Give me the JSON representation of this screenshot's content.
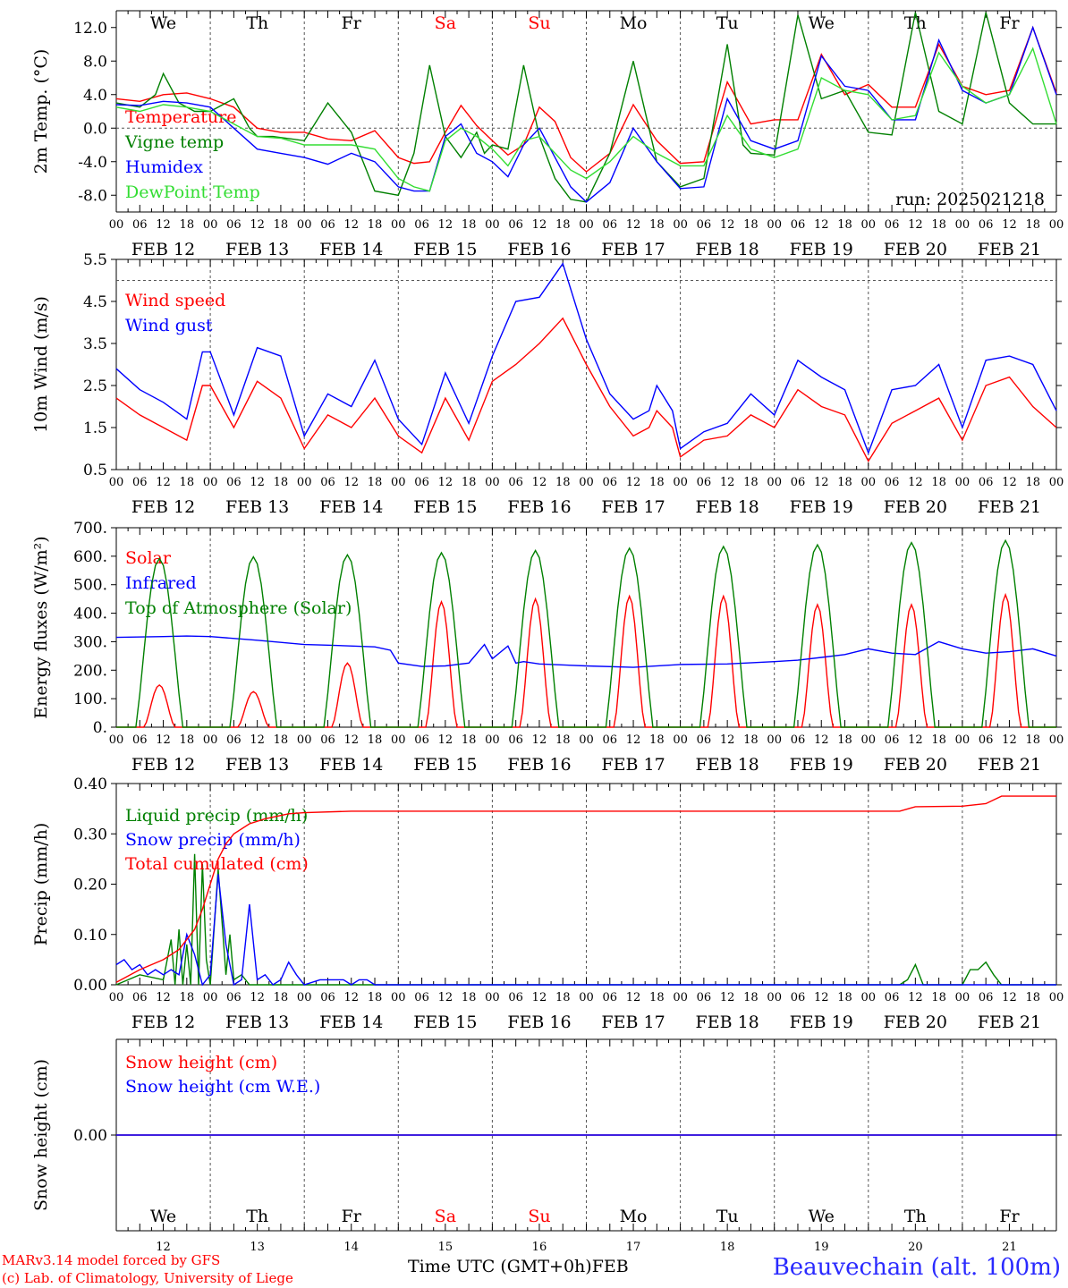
{
  "run_label": "run: 2025021218",
  "footer": {
    "model": "MARv3.14 model forced by GFS",
    "credit": "(c) Lab. of Climatology, University of Liege",
    "x_axis_label": "Time UTC (GMT+0h)",
    "month": "FEB",
    "station": "Beauvechain (alt. 100m)"
  },
  "days": [
    {
      "weekday": "We",
      "date": "FEB 12",
      "num": "12",
      "weekend": false
    },
    {
      "weekday": "Th",
      "date": "FEB 13",
      "num": "13",
      "weekend": false
    },
    {
      "weekday": "Fr",
      "date": "FEB 14",
      "num": "14",
      "weekend": false
    },
    {
      "weekday": "Sa",
      "date": "FEB 15",
      "num": "15",
      "weekend": true
    },
    {
      "weekday": "Su",
      "date": "FEB 16",
      "num": "16",
      "weekend": true
    },
    {
      "weekday": "Mo",
      "date": "FEB 17",
      "num": "17",
      "weekend": false
    },
    {
      "weekday": "Tu",
      "date": "FEB 18",
      "num": "18",
      "weekend": false
    },
    {
      "weekday": "We",
      "date": "FEB 19",
      "num": "19",
      "weekend": false
    },
    {
      "weekday": "Th",
      "date": "FEB 20",
      "num": "20",
      "weekend": false
    },
    {
      "weekday": "Fr",
      "date": "FEB 21",
      "num": "21",
      "weekend": false
    }
  ],
  "hour_ticks": [
    "00",
    "06",
    "12",
    "18"
  ],
  "colors": {
    "red": "#ff0000",
    "green": "#008000",
    "blue": "#0000ff",
    "light_green": "#33dd33",
    "weekend": "#ff0000"
  },
  "chart_data": [
    {
      "type": "line",
      "ylabel": "2m Temp. (°C)",
      "ylim": [
        -10,
        14
      ],
      "yticks": [
        "12.0",
        "8.0",
        "4.0",
        "0.0",
        "-4.0",
        "-8.0"
      ],
      "ytick_values": [
        12,
        8,
        4,
        0,
        -4,
        -8
      ],
      "ref_lines": [
        0
      ],
      "x_unit": "hours since FEB 12 00 UTC",
      "series": [
        {
          "name": "Temperature",
          "color": "#ff0000",
          "x": [
            0,
            6,
            12,
            18,
            24,
            30,
            36,
            42,
            48,
            54,
            60,
            66,
            72,
            76,
            80,
            84,
            88,
            92,
            96,
            100,
            104,
            108,
            112,
            116,
            120,
            126,
            132,
            138,
            144,
            150,
            156,
            162,
            168,
            174,
            180,
            186,
            192,
            198,
            204,
            210,
            216,
            222,
            228,
            234,
            240
          ],
          "y": [
            3.5,
            3.2,
            4.0,
            4.2,
            3.5,
            2.5,
            0.0,
            -0.5,
            -0.5,
            -1.3,
            -1.5,
            -0.3,
            -3.5,
            -4.2,
            -4.0,
            -0.5,
            2.7,
            0.3,
            -1.5,
            -3.2,
            -2.0,
            2.5,
            0.8,
            -3.5,
            -5.2,
            -3.0,
            2.8,
            -1.5,
            -4.2,
            -4.0,
            5.5,
            0.5,
            1.0,
            1.0,
            8.8,
            4.0,
            5.2,
            2.5,
            2.5,
            10.0,
            5.0,
            4.0,
            4.5,
            12.0,
            4.2
          ]
        },
        {
          "name": "Vigne temp",
          "color": "#008000",
          "x": [
            0,
            6,
            10,
            12,
            16,
            20,
            24,
            30,
            34,
            36,
            40,
            48,
            54,
            60,
            66,
            72,
            76,
            80,
            84,
            88,
            92,
            94,
            96,
            100,
            104,
            108,
            112,
            116,
            120,
            126,
            132,
            138,
            144,
            150,
            156,
            160,
            162,
            168,
            174,
            180,
            186,
            192,
            198,
            204,
            210,
            216,
            222,
            228,
            234,
            240
          ],
          "y": [
            3.0,
            2.5,
            4.0,
            6.5,
            3.0,
            2.0,
            2.0,
            3.5,
            0.0,
            -1.0,
            -1.0,
            -1.5,
            3.0,
            -0.5,
            -7.5,
            -8.0,
            -3.0,
            7.5,
            -1.0,
            -3.5,
            -0.5,
            -3.0,
            -2.0,
            -2.5,
            7.5,
            -1.0,
            -6.0,
            -8.5,
            -8.8,
            -3.0,
            8.0,
            -4.0,
            -7.0,
            -6.0,
            10.0,
            -2.0,
            -3.0,
            -3.2,
            13.5,
            3.5,
            4.5,
            -0.5,
            -0.8,
            13.8,
            2.0,
            0.5,
            13.8,
            3.0,
            0.5,
            0.5
          ]
        },
        {
          "name": "Humidex",
          "color": "#0000ff",
          "x": [
            0,
            6,
            12,
            18,
            24,
            30,
            36,
            42,
            48,
            54,
            60,
            66,
            72,
            76,
            80,
            84,
            88,
            92,
            96,
            100,
            104,
            108,
            112,
            116,
            120,
            126,
            132,
            138,
            144,
            150,
            156,
            162,
            168,
            174,
            180,
            186,
            192,
            198,
            204,
            210,
            216,
            222,
            228,
            234,
            240
          ],
          "y": [
            2.8,
            2.7,
            3.2,
            3.0,
            2.5,
            0.0,
            -2.5,
            -3.0,
            -3.5,
            -4.3,
            -3.0,
            -4.0,
            -7.0,
            -7.5,
            -7.5,
            -1.0,
            0.5,
            -3.0,
            -4.0,
            -5.8,
            -2.0,
            0.0,
            -3.5,
            -7.0,
            -8.8,
            -6.5,
            0.0,
            -4.0,
            -7.2,
            -7.0,
            3.5,
            -1.5,
            -2.5,
            -1.5,
            8.6,
            5.0,
            4.5,
            1.0,
            1.0,
            10.5,
            4.5,
            3.0,
            4.0,
            12.0,
            4.0
          ]
        },
        {
          "name": "DewPoint Temp",
          "color": "#33dd33",
          "x": [
            0,
            6,
            12,
            18,
            24,
            30,
            36,
            42,
            48,
            54,
            60,
            66,
            72,
            76,
            80,
            84,
            88,
            92,
            96,
            100,
            104,
            108,
            112,
            116,
            120,
            126,
            132,
            138,
            144,
            150,
            156,
            162,
            168,
            174,
            180,
            186,
            192,
            198,
            204,
            210,
            216,
            222,
            228,
            234,
            240
          ],
          "y": [
            2.5,
            2.0,
            2.8,
            2.5,
            2.0,
            0.5,
            -1.0,
            -1.2,
            -2.0,
            -2.0,
            -2.0,
            -2.5,
            -6.0,
            -7.0,
            -7.5,
            -1.5,
            0.0,
            -1.0,
            -2.5,
            -4.5,
            -1.5,
            -1.0,
            -3.0,
            -5.0,
            -6.0,
            -4.0,
            -1.0,
            -3.0,
            -4.5,
            -4.5,
            1.5,
            -2.5,
            -3.5,
            -2.5,
            6.0,
            4.5,
            4.0,
            1.0,
            1.5,
            9.0,
            5.0,
            3.0,
            4.0,
            9.5,
            0.5
          ]
        }
      ]
    },
    {
      "type": "line",
      "ylabel": "10m Wind (m/s)",
      "ylim": [
        0.5,
        5.5
      ],
      "yticks": [
        "5.5",
        "4.5",
        "3.5",
        "2.5",
        "1.5",
        "0.5"
      ],
      "ytick_values": [
        5.5,
        4.5,
        3.5,
        2.5,
        1.5,
        0.5
      ],
      "ref_lines": [
        5.0
      ],
      "x_unit": "hours since FEB 12 00 UTC",
      "series": [
        {
          "name": "Wind speed",
          "color": "#ff0000",
          "x": [
            0,
            6,
            12,
            18,
            22,
            24,
            30,
            36,
            42,
            48,
            54,
            60,
            66,
            72,
            78,
            84,
            90,
            96,
            102,
            108,
            114,
            120,
            126,
            132,
            136,
            138,
            142,
            144,
            150,
            156,
            162,
            168,
            174,
            180,
            186,
            192,
            198,
            204,
            210,
            216,
            222,
            228,
            234,
            240
          ],
          "y": [
            2.2,
            1.8,
            1.5,
            1.2,
            2.5,
            2.5,
            1.5,
            2.6,
            2.2,
            1.0,
            1.8,
            1.5,
            2.2,
            1.3,
            0.9,
            2.2,
            1.2,
            2.6,
            3.0,
            3.5,
            4.1,
            3.0,
            2.0,
            1.3,
            1.5,
            1.9,
            1.5,
            0.8,
            1.2,
            1.3,
            1.8,
            1.5,
            2.4,
            2.0,
            1.8,
            0.7,
            1.6,
            1.9,
            2.2,
            1.2,
            2.5,
            2.7,
            2.0,
            1.5
          ]
        },
        {
          "name": "Wind gust",
          "color": "#0000ff",
          "x": [
            0,
            6,
            12,
            18,
            22,
            24,
            30,
            36,
            42,
            48,
            54,
            60,
            66,
            72,
            78,
            84,
            90,
            96,
            102,
            108,
            114,
            120,
            126,
            132,
            136,
            138,
            142,
            144,
            150,
            156,
            162,
            168,
            174,
            180,
            186,
            192,
            198,
            204,
            210,
            216,
            222,
            228,
            234,
            240
          ],
          "y": [
            2.9,
            2.4,
            2.1,
            1.7,
            3.3,
            3.3,
            1.8,
            3.4,
            3.2,
            1.3,
            2.3,
            2.0,
            3.1,
            1.7,
            1.1,
            2.8,
            1.6,
            3.2,
            4.5,
            4.6,
            5.4,
            3.6,
            2.3,
            1.7,
            1.9,
            2.5,
            1.9,
            1.0,
            1.4,
            1.6,
            2.3,
            1.8,
            3.1,
            2.7,
            2.4,
            0.9,
            2.4,
            2.5,
            3.0,
            1.5,
            3.1,
            3.2,
            3.0,
            1.9
          ]
        }
      ]
    },
    {
      "type": "line",
      "ylabel": "Energy fluxes (W/m²)",
      "ylim": [
        0,
        700
      ],
      "yticks": [
        "700.",
        "600.",
        "500.",
        "400.",
        "300.",
        "200.",
        "100.",
        "0."
      ],
      "ytick_values": [
        700,
        600,
        500,
        400,
        300,
        200,
        100,
        0
      ],
      "ref_lines": [],
      "x_unit": "hours since FEB 12 00 UTC",
      "series": [
        {
          "name": "Solar",
          "color": "#ff0000",
          "daily_peak": [
            148,
            125,
            225,
            440,
            450,
            460,
            460,
            430,
            430,
            465
          ]
        },
        {
          "name": "Infrared",
          "color": "#0000ff",
          "x": [
            0,
            12,
            18,
            24,
            36,
            48,
            54,
            66,
            70,
            72,
            78,
            84,
            90,
            94,
            96,
            100,
            102,
            104,
            108,
            120,
            132,
            144,
            156,
            168,
            174,
            180,
            186,
            189,
            192,
            198,
            204,
            210,
            216,
            222,
            228,
            234,
            240
          ],
          "y": [
            315,
            318,
            320,
            318,
            305,
            290,
            288,
            282,
            270,
            225,
            213,
            215,
            225,
            290,
            240,
            285,
            225,
            230,
            222,
            215,
            210,
            220,
            222,
            230,
            235,
            245,
            255,
            265,
            275,
            260,
            255,
            300,
            275,
            260,
            265,
            275,
            250
          ]
        },
        {
          "name": "Top of Atmosphere (Solar)",
          "color": "#008000",
          "daily_peak": [
            592,
            598,
            605,
            612,
            620,
            628,
            634,
            640,
            648,
            655
          ]
        }
      ]
    },
    {
      "type": "line",
      "ylabel": "Precip (mm/h)",
      "ylim": [
        0,
        0.4
      ],
      "yticks": [
        "0.40",
        "0.30",
        "0.20",
        "0.10",
        "0.00"
      ],
      "ytick_values": [
        0.4,
        0.3,
        0.2,
        0.1,
        0.0
      ],
      "ref_lines": [],
      "x_unit": "hours since FEB 12 00 UTC",
      "series": [
        {
          "name": "Liquid precip (mm/h)",
          "color": "#008000",
          "x": [
            0,
            6,
            12,
            14,
            15,
            16,
            17,
            18,
            19,
            20,
            21,
            22,
            23,
            24,
            26,
            28,
            29,
            30,
            32,
            34,
            36,
            48,
            200,
            202,
            204,
            206,
            210,
            216,
            218,
            220,
            222,
            224,
            226,
            240
          ],
          "y": [
            0,
            0.02,
            0.01,
            0.09,
            0.0,
            0.11,
            0.0,
            0.08,
            0.0,
            0.26,
            0.0,
            0.24,
            0.05,
            0.0,
            0.23,
            0.02,
            0.1,
            0.01,
            0.02,
            0.0,
            0.0,
            0.0,
            0.0,
            0.01,
            0.04,
            0.0,
            0.0,
            0.0,
            0.03,
            0.03,
            0.045,
            0.02,
            0.0,
            0.0
          ]
        },
        {
          "name": "Snow precip (mm/h)",
          "color": "#0000ff",
          "x": [
            0,
            2,
            4,
            6,
            8,
            10,
            12,
            14,
            16,
            18,
            20,
            22,
            24,
            26,
            28,
            30,
            32,
            34,
            36,
            38,
            40,
            42,
            44,
            46,
            48,
            52,
            56,
            58,
            60,
            62,
            64,
            66,
            240
          ],
          "y": [
            0.04,
            0.05,
            0.03,
            0.04,
            0.02,
            0.03,
            0.02,
            0.03,
            0.02,
            0.1,
            0.06,
            0.0,
            0.02,
            0.22,
            0.08,
            0.0,
            0.01,
            0.16,
            0.01,
            0.02,
            0.0,
            0.01,
            0.045,
            0.02,
            0.0,
            0.01,
            0.01,
            0.01,
            0.0,
            0.01,
            0.01,
            0.0,
            0.0
          ]
        },
        {
          "name": "Total cumulated (cm)",
          "color": "#ff0000",
          "x": [
            0,
            6,
            12,
            16,
            20,
            22,
            24,
            26,
            28,
            30,
            34,
            38,
            44,
            48,
            60,
            72,
            200,
            204,
            216,
            222,
            226,
            240
          ],
          "y": [
            0.005,
            0.03,
            0.05,
            0.07,
            0.11,
            0.15,
            0.2,
            0.25,
            0.28,
            0.3,
            0.32,
            0.33,
            0.34,
            0.342,
            0.345,
            0.345,
            0.345,
            0.354,
            0.355,
            0.36,
            0.375,
            0.375
          ]
        }
      ]
    },
    {
      "type": "line",
      "ylabel": "Snow height (cm)",
      "ylim": [
        -0.01,
        0.01
      ],
      "yticks": [
        "0.00"
      ],
      "ytick_values": [
        0
      ],
      "ref_lines": [],
      "x_unit": "hours since FEB 12 00 UTC",
      "series": [
        {
          "name": "Snow height (cm)",
          "color": "#ff0000",
          "x": [
            0,
            240
          ],
          "y": [
            0,
            0
          ]
        },
        {
          "name": "Snow height (cm W.E.)",
          "color": "#0000ff",
          "x": [
            0,
            240
          ],
          "y": [
            0,
            0
          ]
        }
      ]
    }
  ]
}
